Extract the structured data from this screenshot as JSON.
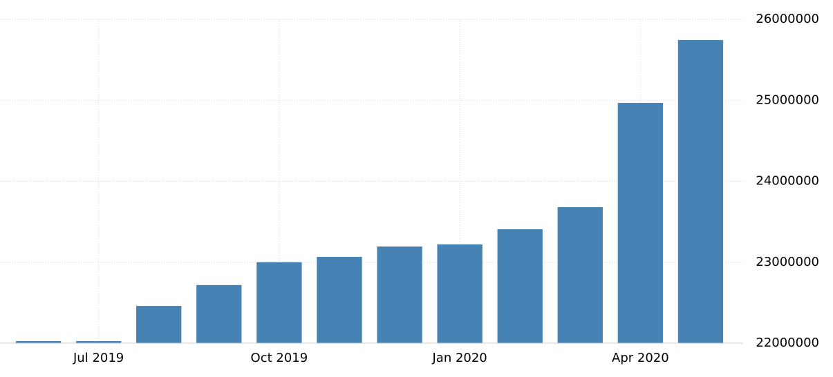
{
  "chart_data": {
    "type": "bar",
    "categories": [
      null,
      "Jul 2019",
      null,
      null,
      "Oct 2019",
      null,
      null,
      "Jan 2020",
      null,
      null,
      "Apr 2020",
      null
    ],
    "values": [
      22025000,
      22025000,
      22460000,
      22718000,
      23000000,
      23066000,
      23194000,
      23220000,
      23407000,
      23680000,
      24968000,
      25744000
    ],
    "color": "#4682b4",
    "ylim": [
      22000000,
      26000000
    ],
    "yticks": [
      22000000,
      23000000,
      24000000,
      25000000,
      26000000
    ],
    "grid": true
  }
}
